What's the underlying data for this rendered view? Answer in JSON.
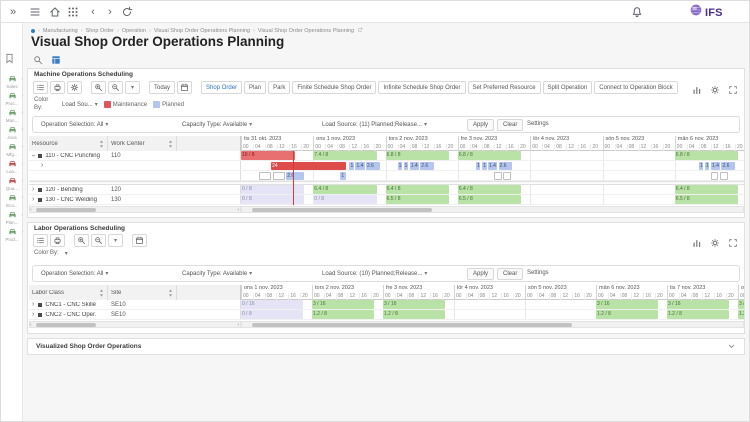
{
  "topbar": {
    "logo": "IFS"
  },
  "breadcrumb": {
    "items": [
      "Manufacturing",
      "Shop Order",
      "Operation",
      "Visual Shop Order Operations Planning",
      "Visual Shop Order Operations Planning"
    ]
  },
  "page": {
    "title": "Visual Shop Order Operations Planning"
  },
  "sidebar": {
    "items": [
      {
        "label": "Sales",
        "color": "#6f9f6f"
      },
      {
        "label": "Proc...",
        "color": "#6f9f6f"
      },
      {
        "label": "Man...",
        "color": "#6f9f6f"
      },
      {
        "label": "Joos",
        "color": "#6f9f6f"
      },
      {
        "label": "Mfg...",
        "color": "#6f9f6f"
      },
      {
        "label": "Loa...",
        "color": "#b9504c"
      },
      {
        "label": "Qua...",
        "color": "#b9504c"
      },
      {
        "label": "Eco...",
        "color": "#6f9f6f"
      },
      {
        "label": "Plan...",
        "color": "#6f9f6f"
      },
      {
        "label": "Prod...",
        "color": "#6f9f6f"
      }
    ]
  },
  "machine": {
    "title": "Machine Operations Scheduling",
    "toolbar": {
      "today": "Today",
      "actions": [
        {
          "label": "Shop Order",
          "primary": true
        },
        {
          "label": "Plan"
        },
        {
          "label": "Park"
        },
        {
          "label": "Finite Schedule Shop Order"
        },
        {
          "label": "Infinite Schedule Shop Order"
        },
        {
          "label": "Set Preferred Resource"
        },
        {
          "label": "Split Operation"
        },
        {
          "label": "Connect to Operation Block"
        }
      ]
    },
    "color_by": {
      "label": "Color By:",
      "value": "Load Sou...",
      "legend": [
        {
          "label": "Maintenance",
          "color": "#e0545c"
        },
        {
          "label": "Planned",
          "color": "#b4c5ee"
        }
      ]
    },
    "filters": {
      "operation_selection": "Operation Selection: All",
      "capacity_type": "Capacity Type: Available",
      "load_source": "Load Source: (11) Planned;Release...",
      "apply": "Apply",
      "clear": "Clear",
      "settings": "Settings"
    },
    "grid": {
      "columns": [
        "Resource",
        "Work Center"
      ],
      "days": [
        "tis 31 okt. 2023",
        "ons 1 nov. 2023",
        "tors 2 nov. 2023",
        "fre 3 nov. 2023",
        "lör 4 nov. 2023",
        "sön 5 nov. 2023",
        "mån 6 nov. 2023",
        "tis 7 nov. 2023"
      ],
      "hours": [
        "00",
        "04",
        "08",
        "12",
        "16",
        "20"
      ],
      "today_hour": 17.3,
      "rows": [
        {
          "expand": "open",
          "icon": true,
          "label": "110 - CNC Punching",
          "col2": "110",
          "bars": [
            {
              "s": 0,
              "e": 18,
              "c": "over",
              "t": "10 / 8"
            },
            {
              "s": 24,
              "e": 45,
              "c": "ok",
              "t": "7.4 / 8"
            },
            {
              "s": 48,
              "e": 69,
              "c": "ok",
              "t": "6.8 / 8"
            },
            {
              "s": 72,
              "e": 93,
              "c": "ok",
              "t": "6.8 / 8"
            },
            {
              "s": 144,
              "e": 165,
              "c": "ok",
              "t": "6.8 / 8"
            },
            {
              "s": 168,
              "e": 189,
              "c": "ok",
              "t": "6.8 / 8"
            }
          ]
        },
        {
          "expand": "closed",
          "indent": true,
          "label": "",
          "col2": "",
          "bars": [
            {
              "s": 10,
              "e": 35,
              "c": "red",
              "t": "24"
            },
            {
              "s": 36,
              "e": 37.5,
              "c": "plan",
              "t": "1"
            },
            {
              "s": 38,
              "e": 41,
              "c": "plan",
              "t": "1.4"
            },
            {
              "s": 41.5,
              "e": 46,
              "c": "plan",
              "t": "2.6"
            },
            {
              "s": 52,
              "e": 53.5,
              "c": "plan",
              "t": "1"
            },
            {
              "s": 54,
              "e": 55.5,
              "c": "plan",
              "t": "1"
            },
            {
              "s": 56,
              "e": 59,
              "c": "plan",
              "t": "1.4"
            },
            {
              "s": 59.5,
              "e": 64,
              "c": "plan",
              "t": "2.6"
            },
            {
              "s": 78,
              "e": 79.5,
              "c": "plan",
              "t": "1"
            },
            {
              "s": 80,
              "e": 81.5,
              "c": "plan",
              "t": "1"
            },
            {
              "s": 82,
              "e": 85,
              "c": "plan",
              "t": "1.4"
            },
            {
              "s": 85.5,
              "e": 90,
              "c": "plan",
              "t": "2.6"
            },
            {
              "s": 152,
              "e": 153.5,
              "c": "plan",
              "t": "1"
            },
            {
              "s": 154,
              "e": 155.5,
              "c": "plan",
              "t": "1"
            },
            {
              "s": 156,
              "e": 159,
              "c": "plan",
              "t": "1.4"
            },
            {
              "s": 159.5,
              "e": 164,
              "c": "plan",
              "t": "2.6"
            },
            {
              "s": 168,
              "e": 169.5,
              "c": "plan",
              "t": "1"
            }
          ]
        },
        {
          "label": "",
          "col2": "",
          "bars": [
            {
              "s": 6,
              "e": 10,
              "c": "empty",
              "t": ""
            },
            {
              "s": 10.5,
              "e": 14.5,
              "c": "empty",
              "t": ""
            },
            {
              "s": 15,
              "e": 21,
              "c": "plan",
              "t": "2.6"
            },
            {
              "s": 33,
              "e": 35,
              "c": "plan",
              "t": "1"
            },
            {
              "s": 84,
              "e": 86.5,
              "c": "empty",
              "t": ""
            },
            {
              "s": 87,
              "e": 89.5,
              "c": "empty",
              "t": ""
            },
            {
              "s": 156,
              "e": 158.5,
              "c": "empty",
              "t": ""
            },
            {
              "s": 159,
              "e": 161.5,
              "c": "empty",
              "t": ""
            }
          ]
        },
        {
          "gap": true
        },
        {
          "expand": "closed",
          "icon": true,
          "label": "120 - Bending",
          "col2": "120",
          "bars": [
            {
              "s": 0,
              "e": 21,
              "c": "zero",
              "t": "0 / 8"
            },
            {
              "s": 24,
              "e": 45,
              "c": "ok",
              "t": "6.4 / 8"
            },
            {
              "s": 48,
              "e": 69,
              "c": "ok",
              "t": "6.4 / 8"
            },
            {
              "s": 72,
              "e": 93,
              "c": "ok",
              "t": "6.4 / 8"
            },
            {
              "s": 144,
              "e": 165,
              "c": "ok",
              "t": "6.4 / 8"
            },
            {
              "s": 168,
              "e": 189,
              "c": "ok",
              "t": "6.4 / 8"
            }
          ]
        },
        {
          "expand": "closed",
          "icon": true,
          "label": "130 - CNC Welding",
          "col2": "130",
          "bars": [
            {
              "s": 0,
              "e": 21,
              "c": "zero",
              "t": "0 / 8"
            },
            {
              "s": 24,
              "e": 45,
              "c": "zero",
              "t": "0 / 8"
            },
            {
              "s": 48,
              "e": 69,
              "c": "ok",
              "t": "6.5 / 8"
            },
            {
              "s": 72,
              "e": 93,
              "c": "ok",
              "t": "6.5 / 8"
            },
            {
              "s": 144,
              "e": 165,
              "c": "ok",
              "t": "6.5 / 8"
            },
            {
              "s": 168,
              "e": 189,
              "c": "ok",
              "t": "6.5 / 8"
            }
          ]
        }
      ]
    }
  },
  "labor": {
    "title": "Labor Operations Scheduling",
    "color_by": {
      "label": "Color By:"
    },
    "filters": {
      "operation_selection": "Operation Selection: All",
      "capacity_type": "Capacity Type: Available",
      "load_source": "Load Source: (10) Planned;Release...",
      "apply": "Apply",
      "clear": "Clear",
      "settings": "Settings"
    },
    "grid": {
      "columns": [
        "Labor Class",
        "Site"
      ],
      "days": [
        "ons 1 nov. 2023",
        "tors 2 nov. 2023",
        "fre 3 nov. 2023",
        "lör 4 nov. 2023",
        "sön 5 nov. 2023",
        "mån 6 nov. 2023",
        "tis 7 nov. 2023",
        "ons 8 nov. 2023"
      ],
      "hours": [
        "00",
        "04",
        "08",
        "12",
        "16",
        "20"
      ],
      "today_hour": null,
      "rows": [
        {
          "expand": "closed",
          "icon": true,
          "label": "CNC1 - CNC Skille",
          "col2": "SE10",
          "bars": [
            {
              "s": 0,
              "e": 21,
              "c": "zero",
              "t": "0 / 16"
            },
            {
              "s": 24,
              "e": 45,
              "c": "ok",
              "t": "3 / 16"
            },
            {
              "s": 48,
              "e": 69,
              "c": "ok",
              "t": "3 / 16"
            },
            {
              "s": 120,
              "e": 141,
              "c": "ok",
              "t": "3 / 16"
            },
            {
              "s": 144,
              "e": 165,
              "c": "ok",
              "t": "3 / 16"
            },
            {
              "s": 168,
              "e": 189,
              "c": "ok",
              "t": "3 / 16"
            }
          ]
        },
        {
          "expand": "closed",
          "icon": true,
          "label": "CNC2 - CNC Oper.",
          "col2": "SE10",
          "bars": [
            {
              "s": 0,
              "e": 21,
              "c": "zero",
              "t": "0 / 8"
            },
            {
              "s": 24,
              "e": 45,
              "c": "ok",
              "t": "1.2 / 8"
            },
            {
              "s": 48,
              "e": 69,
              "c": "ok",
              "t": "1.2 / 8"
            },
            {
              "s": 120,
              "e": 141,
              "c": "ok",
              "t": "1.2 / 8"
            },
            {
              "s": 144,
              "e": 165,
              "c": "ok",
              "t": "1.2 / 8"
            },
            {
              "s": 168,
              "e": 189,
              "c": "ok",
              "t": "1.2 / 8"
            }
          ]
        }
      ]
    }
  },
  "visualized": {
    "title": "Visualized Shop Order Operations"
  }
}
